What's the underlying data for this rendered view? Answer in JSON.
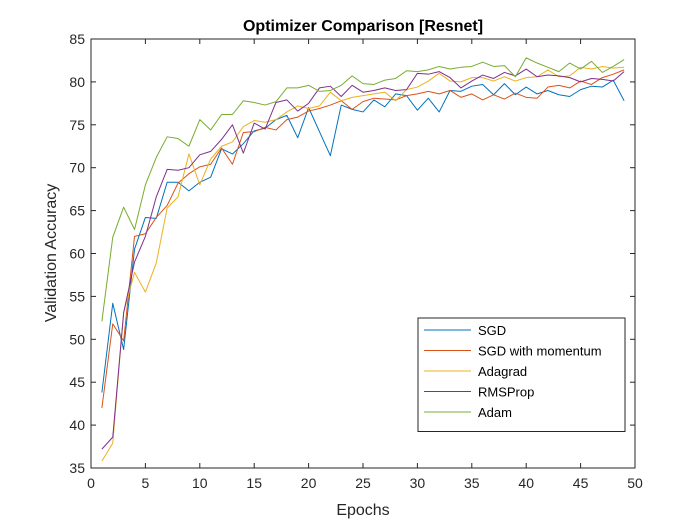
{
  "chart_data": {
    "type": "line",
    "title": "Optimizer Comparison [Resnet]",
    "xlabel": "Epochs",
    "ylabel": "Validation Accuracy",
    "xlim": [
      0,
      50
    ],
    "ylim": [
      35,
      85
    ],
    "xticks": [
      "0",
      "5",
      "10",
      "15",
      "20",
      "25",
      "30",
      "35",
      "40",
      "45",
      "50"
    ],
    "yticks": [
      "35",
      "40",
      "45",
      "50",
      "55",
      "60",
      "65",
      "70",
      "75",
      "80",
      "85"
    ],
    "grid": false,
    "legend_position": "bottom-right",
    "x": [
      1,
      2,
      3,
      4,
      5,
      6,
      7,
      8,
      9,
      10,
      11,
      12,
      13,
      14,
      15,
      16,
      17,
      18,
      19,
      20,
      21,
      22,
      23,
      24,
      25,
      26,
      27,
      28,
      29,
      30,
      31,
      32,
      33,
      34,
      35,
      36,
      37,
      38,
      39,
      40,
      41,
      42,
      43,
      44,
      45,
      46,
      47,
      48,
      49
    ],
    "series": [
      {
        "name": "SGD",
        "color": "#0072BD",
        "values": [
          43.8,
          54.2,
          48.8,
          60.5,
          64.2,
          64.1,
          68.3,
          68.3,
          67.3,
          68.3,
          68.9,
          72.2,
          71.6,
          72.8,
          74.3,
          74.6,
          75.6,
          76.1,
          73.5,
          77.0,
          74.2,
          71.4,
          77.3,
          76.8,
          76.5,
          77.9,
          77.1,
          78.6,
          78.4,
          76.7,
          78.1,
          76.5,
          79.0,
          78.9,
          79.5,
          79.7,
          78.5,
          79.8,
          78.5,
          79.4,
          78.6,
          79.0,
          78.5,
          78.3,
          79.1,
          79.5,
          79.4,
          80.2,
          77.8
        ]
      },
      {
        "name": "SGD with momentum",
        "color": "#D95319",
        "values": [
          42.0,
          51.8,
          49.8,
          62.0,
          62.3,
          64.2,
          65.6,
          68.2,
          69.3,
          70.1,
          70.4,
          72.3,
          70.4,
          74.1,
          74.2,
          74.7,
          74.4,
          75.6,
          75.9,
          76.6,
          76.9,
          77.3,
          77.8,
          76.8,
          77.7,
          78.1,
          78.0,
          77.9,
          78.4,
          78.6,
          78.9,
          78.6,
          79.0,
          78.2,
          78.6,
          77.9,
          78.5,
          78.0,
          78.7,
          78.2,
          78.1,
          79.4,
          79.6,
          79.3,
          80.1,
          79.7,
          80.5,
          80.9,
          81.4
        ]
      },
      {
        "name": "Adagrad",
        "color": "#EDB120",
        "values": [
          35.8,
          37.9,
          53.1,
          57.8,
          55.5,
          58.9,
          65.3,
          66.6,
          71.6,
          68.0,
          71.0,
          72.5,
          73.0,
          74.8,
          75.5,
          75.3,
          75.6,
          76.5,
          77.2,
          76.9,
          77.2,
          78.8,
          77.8,
          78.2,
          78.4,
          78.6,
          78.8,
          77.8,
          79.1,
          79.4,
          80.1,
          81.0,
          80.1,
          80.0,
          80.5,
          80.5,
          80.1,
          80.6,
          80.1,
          80.5,
          80.6,
          81.4,
          80.6,
          80.7,
          81.7,
          81.5,
          81.8,
          81.6,
          81.7
        ]
      },
      {
        "name": "RMSProp",
        "color": "#7E2F8E",
        "values": [
          37.2,
          38.6,
          53.1,
          59.0,
          62.0,
          66.6,
          69.8,
          69.7,
          70.0,
          71.5,
          71.9,
          73.3,
          75.0,
          71.7,
          75.2,
          74.5,
          77.6,
          77.9,
          76.6,
          77.5,
          79.3,
          79.5,
          78.3,
          79.6,
          78.8,
          79.0,
          79.3,
          79.0,
          79.1,
          81.0,
          80.9,
          81.2,
          80.5,
          79.3,
          80.1,
          80.8,
          80.4,
          81.1,
          80.7,
          81.5,
          80.6,
          80.8,
          80.7,
          80.5,
          80.0,
          80.4,
          80.3,
          80.1,
          81.2
        ]
      },
      {
        "name": "Adam",
        "color": "#77AC30",
        "values": [
          52.1,
          61.9,
          65.4,
          62.8,
          68.0,
          71.2,
          73.6,
          73.4,
          72.5,
          75.6,
          74.4,
          76.2,
          76.2,
          77.8,
          77.6,
          77.3,
          77.7,
          79.3,
          79.3,
          79.6,
          78.9,
          79.0,
          79.6,
          80.7,
          79.8,
          79.7,
          80.2,
          80.4,
          81.3,
          81.2,
          81.4,
          81.8,
          81.5,
          81.7,
          81.8,
          82.3,
          81.8,
          81.9,
          80.6,
          82.8,
          82.2,
          81.7,
          81.2,
          82.2,
          81.5,
          82.4,
          81.1,
          81.8,
          82.6
        ]
      }
    ]
  }
}
